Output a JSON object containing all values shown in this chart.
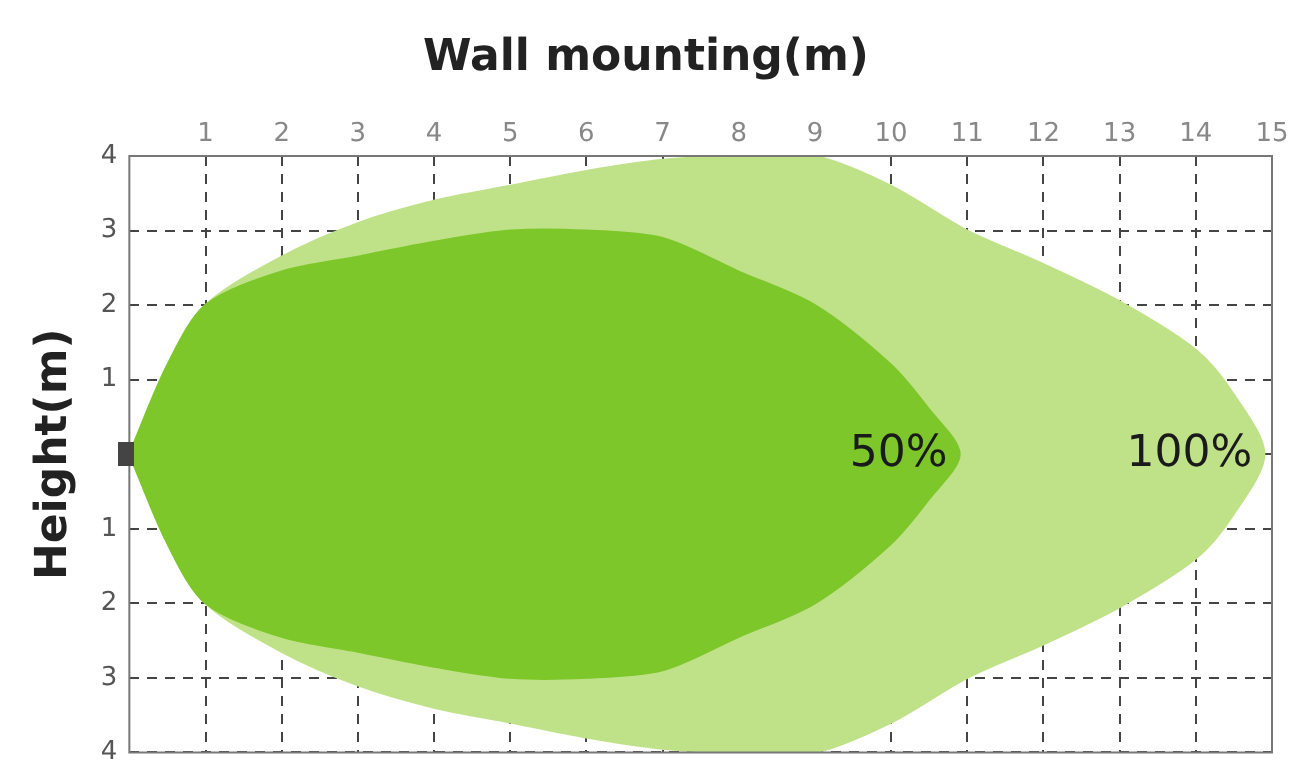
{
  "chart_data": {
    "type": "area",
    "title": "Wall mounting(m)",
    "ylabel": "Height(m)",
    "xlim": [
      0,
      15
    ],
    "xticks": [
      1,
      2,
      3,
      4,
      5,
      6,
      7,
      8,
      9,
      10,
      11,
      12,
      13,
      14,
      15
    ],
    "ylim": [
      -4,
      4
    ],
    "yticks": [
      {
        "value": -4,
        "label": "4"
      },
      {
        "value": -3,
        "label": "3"
      },
      {
        "value": -2,
        "label": "2"
      },
      {
        "value": -1,
        "label": "1"
      },
      {
        "value": 0,
        "label": null
      },
      1,
      2,
      3,
      4
    ],
    "grid": true,
    "line_style": "dashed",
    "legend": false,
    "series": [
      {
        "name": "100%",
        "color": "#bfe289",
        "x": [
          0,
          0.5,
          1,
          2,
          3,
          4,
          5,
          6,
          7,
          8,
          9,
          10,
          11,
          12,
          13,
          14,
          14.5,
          14.9,
          14.5,
          14,
          13,
          12,
          11,
          10,
          9,
          8,
          7,
          6,
          5,
          4,
          3,
          2,
          1,
          0.5,
          0
        ],
        "values": [
          0,
          1.2,
          2.0,
          2.65,
          3.1,
          3.4,
          3.6,
          3.8,
          3.95,
          4,
          4,
          3.6,
          3.0,
          2.55,
          2.05,
          1.4,
          0.8,
          0,
          -0.8,
          -1.4,
          -2.05,
          -2.55,
          -3.0,
          -3.6,
          -4,
          -4,
          -3.95,
          -3.8,
          -3.6,
          -3.4,
          -3.1,
          -2.65,
          -2.0,
          -1.2,
          0
        ]
      },
      {
        "name": "50%",
        "color": "#7dc72a",
        "x": [
          0,
          0.5,
          1,
          2,
          3,
          4,
          5,
          6,
          7,
          8,
          9,
          10,
          10.5,
          10.9,
          10.5,
          10,
          9,
          8,
          7,
          6,
          5,
          4,
          3,
          2,
          1,
          0.5,
          0
        ],
        "values": [
          0,
          1.2,
          2.0,
          2.45,
          2.65,
          2.85,
          3.0,
          3.0,
          2.9,
          2.45,
          2.0,
          1.2,
          0.6,
          0,
          -0.6,
          -1.2,
          -2.0,
          -2.45,
          -2.9,
          -3.0,
          -3.0,
          -2.85,
          -2.65,
          -2.45,
          -2.0,
          -1.2,
          0
        ]
      }
    ]
  }
}
